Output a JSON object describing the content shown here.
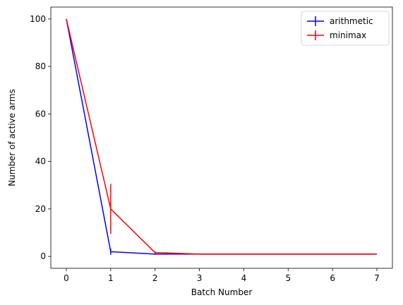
{
  "chart_data": {
    "type": "line",
    "title": "",
    "xlabel": "Batch Number",
    "ylabel": "Number of active arms",
    "xlim": [
      -0.35,
      7.35
    ],
    "ylim": [
      -5,
      105
    ],
    "xticks": [
      0,
      1,
      2,
      3,
      4,
      5,
      6,
      7
    ],
    "yticks": [
      0,
      20,
      40,
      60,
      80,
      100
    ],
    "legend_position": "top-right",
    "grid": false,
    "series": [
      {
        "name": "arithmetic",
        "color": "#0000ff",
        "x": [
          0,
          1,
          2,
          3,
          4,
          5,
          6,
          7
        ],
        "y": [
          100,
          2.0,
          1.0,
          1.0,
          1.0,
          1.0,
          1.0,
          1.0
        ],
        "yerr": [
          0,
          1.3,
          0.3,
          0,
          0,
          0,
          0,
          0
        ]
      },
      {
        "name": "minimax",
        "color": "#ff0000",
        "x": [
          0,
          1,
          2,
          3,
          4,
          5,
          6,
          7
        ],
        "y": [
          100,
          20.0,
          1.6,
          1.0,
          1.0,
          1.0,
          1.0,
          1.0
        ],
        "yerr": [
          0,
          10.5,
          0.6,
          0.1,
          0,
          0,
          0,
          0
        ]
      }
    ]
  }
}
